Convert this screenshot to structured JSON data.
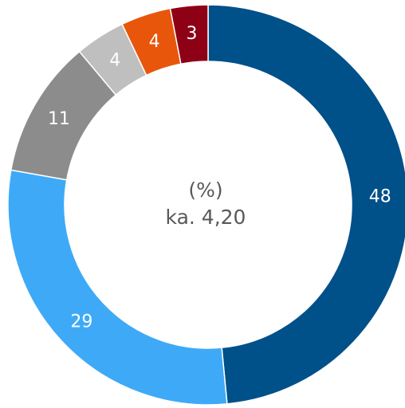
{
  "chart_data": {
    "type": "donut",
    "subtitle": "(%)",
    "annotation": "ka. 4,20",
    "values": [
      48,
      29,
      11,
      4,
      4,
      3
    ],
    "colors": [
      "#00508a",
      "#3eaaf7",
      "#8c8c8c",
      "#bfbfbf",
      "#e8560c",
      "#8e0016"
    ]
  }
}
